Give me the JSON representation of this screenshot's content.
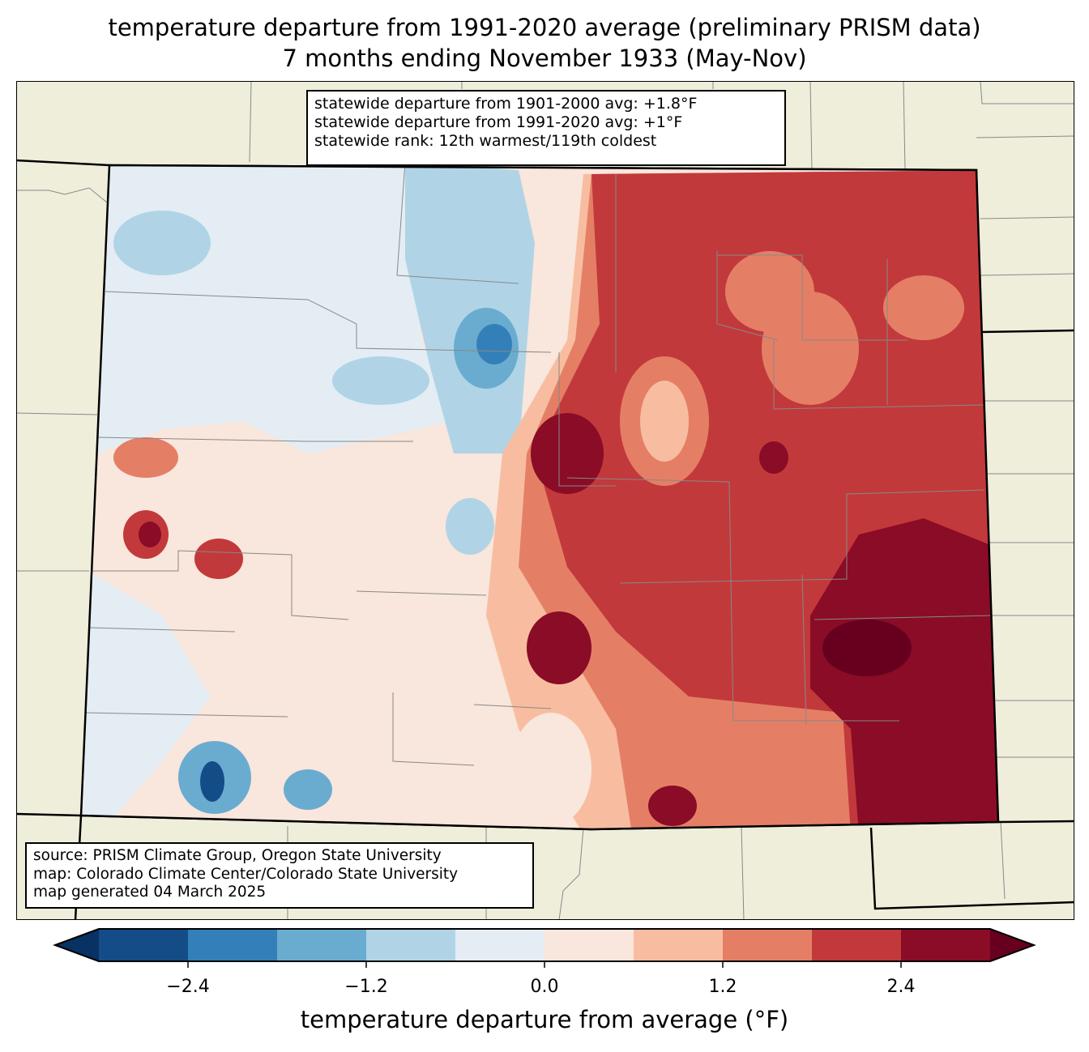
{
  "title": {
    "line1": "temperature departure from 1991-2020 average (preliminary PRISM data)",
    "line2": "7 months ending November 1933 (May-Nov)"
  },
  "info_box": {
    "line1": "statewide departure from 1901-2000 avg: +1.8°F",
    "line2": "statewide departure from 1991-2020 avg: +1°F",
    "line3": "statewide rank: 12th warmest/119th coldest"
  },
  "source_box": {
    "line1": "source: PRISM Climate Group, Oregon State University",
    "line2": "map: Colorado Climate Center/Colorado State University",
    "line3": "map generated 04 March 2025"
  },
  "colorbar": {
    "label": "temperature departure from average (°F)",
    "ticks": [
      "−2.4",
      "−1.2",
      "0.0",
      "1.2",
      "2.4"
    ],
    "tick_values": [
      -2.4,
      -1.2,
      0.0,
      1.2,
      2.4
    ],
    "range": [
      -3.0,
      3.0
    ],
    "step": 0.6,
    "colors": [
      "#144c88",
      "#3380b9",
      "#6aacd0",
      "#b0d4e6",
      "#e4edf4",
      "#f9e6dc",
      "#f8bda0",
      "#e47f66",
      "#c2393b",
      "#8a0c26"
    ],
    "under_color": "#083263",
    "over_color": "#67001f"
  },
  "map": {
    "land_color": "#efeedb",
    "region": "Colorado"
  }
}
